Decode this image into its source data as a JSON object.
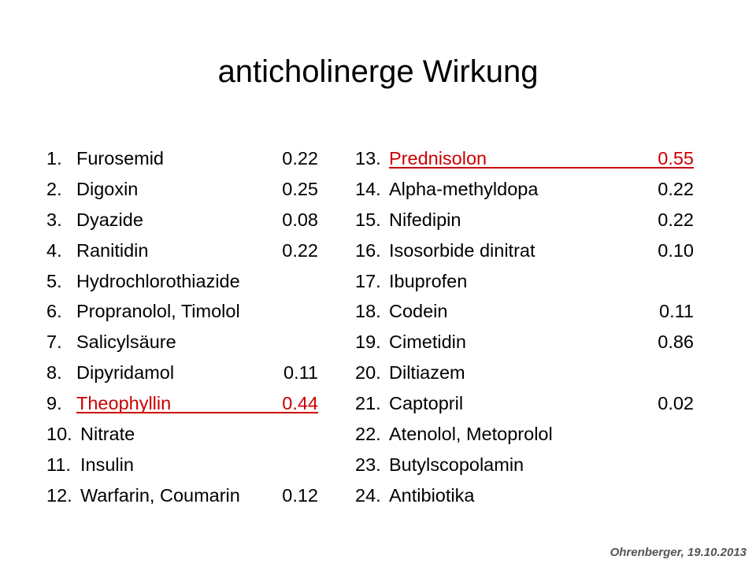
{
  "title": "anticholinerge Wirkung",
  "left_column": [
    {
      "num": "1.",
      "name": "Furosemid",
      "value": "0.22"
    },
    {
      "num": "2.",
      "name": "Digoxin",
      "value": "0.25"
    },
    {
      "num": "3.",
      "name": "Dyazide",
      "value": "0.08"
    },
    {
      "num": "4.",
      "name": "Ranitidin",
      "value": "0.22"
    },
    {
      "num": "5.",
      "name": "Hydrochlorothiazide",
      "value": ""
    },
    {
      "num": "6.",
      "name": "Propranolol, Timolol",
      "value": ""
    },
    {
      "num": "7.",
      "name": "Salicylsäure",
      "value": ""
    },
    {
      "num": "8.",
      "name": "Dipyridamol",
      "value": "0.11"
    },
    {
      "num": "9.",
      "name": "Theophyllin",
      "value": "0.44",
      "highlight": true
    },
    {
      "num": "10.",
      "name": "Nitrate",
      "value": ""
    },
    {
      "num": "11.",
      "name": "Insulin",
      "value": ""
    },
    {
      "num": "12.",
      "name": "Warfarin, Coumarin",
      "value": "0.12"
    }
  ],
  "right_column": [
    {
      "num": "13.",
      "name": "Prednisolon",
      "value": "0.55",
      "highlight": true
    },
    {
      "num": "14.",
      "name": "Alpha-methyldopa",
      "value": "0.22"
    },
    {
      "num": "15.",
      "name": "Nifedipin",
      "value": "0.22"
    },
    {
      "num": "16.",
      "name": "Isosorbide dinitrat",
      "value": "0.10"
    },
    {
      "num": "17.",
      "name": "Ibuprofen",
      "value": ""
    },
    {
      "num": "18.",
      "name": "Codein",
      "value": "0.11"
    },
    {
      "num": "19.",
      "name": "Cimetidin",
      "value": "0.86"
    },
    {
      "num": "20.",
      "name": "Diltiazem",
      "value": ""
    },
    {
      "num": "21.",
      "name": "Captopril",
      "value": "0.02"
    },
    {
      "num": "22.",
      "name": "Atenolol, Metoprolol",
      "value": ""
    },
    {
      "num": "23.",
      "name": "Butylscopolamin",
      "value": ""
    },
    {
      "num": "24.",
      "name": "Antibiotika",
      "value": ""
    }
  ],
  "highlight_color": "#cc0000",
  "footer": "Ohrenberger, 19.10.2013"
}
